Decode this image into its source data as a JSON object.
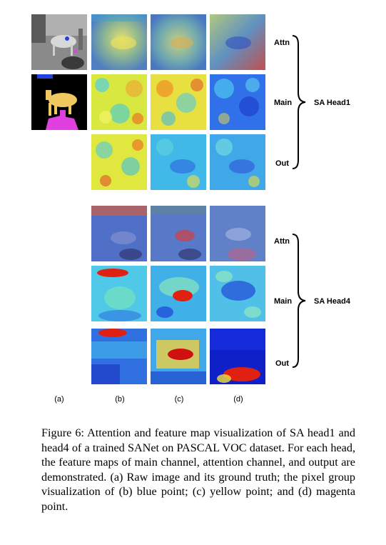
{
  "figure": {
    "row_labels": {
      "head1": [
        "Attn",
        "Main",
        "Out"
      ],
      "head4": [
        "Attn",
        "Main",
        "Out"
      ]
    },
    "head_labels": [
      "SA Head1",
      "SA Head4"
    ],
    "column_labels": [
      "(a)",
      "(b)",
      "(c)",
      "(d)"
    ],
    "colors": {
      "jet_blue": "#1a3cff",
      "jet_cyan": "#30d0f0",
      "jet_yellow": "#f0f030",
      "jet_red": "#e01010",
      "mask_black": "#000000",
      "mask_yellow": "#f0c860",
      "mask_magenta": "#e040e0",
      "mask_blue": "#2040e0"
    }
  },
  "caption": {
    "text": "Figure 6: Attention and feature map visualization of SA head1 and head4 of a trained SANet on PASCAL VOC dataset. For each head, the feature maps of main channel, attention channel, and output are demonstrated. (a) Raw image and its ground truth; the pixel group visualization of (b) blue point; (c) yellow point; and (d) magenta point."
  }
}
